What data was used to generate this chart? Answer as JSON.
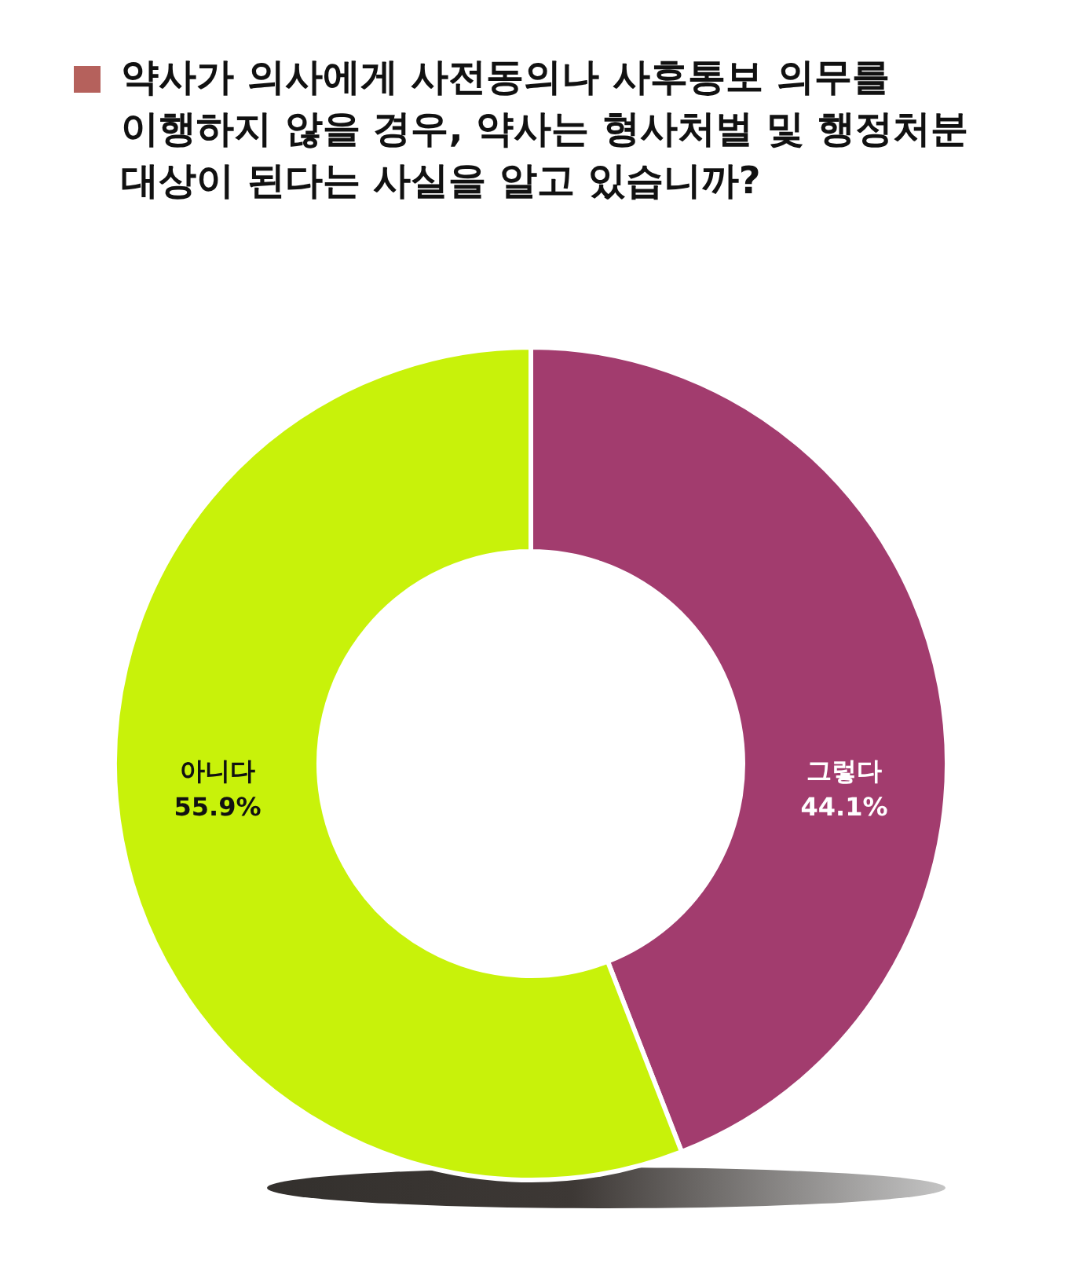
{
  "chart_data": {
    "type": "donut",
    "title": "약사가 의사에게 사전동의나 사후통보 의무를 이행하지 않을 경우, 약사는 형사처벌 및 행정처분 대상이 된다는 사실을 알고 있습니까?",
    "categories": [
      "그렇다",
      "아니다"
    ],
    "values": [
      44.1,
      55.9
    ],
    "colors": [
      "#a23c6e",
      "#c8f20a"
    ],
    "value_labels": [
      "44.1%",
      "55.9%"
    ]
  }
}
